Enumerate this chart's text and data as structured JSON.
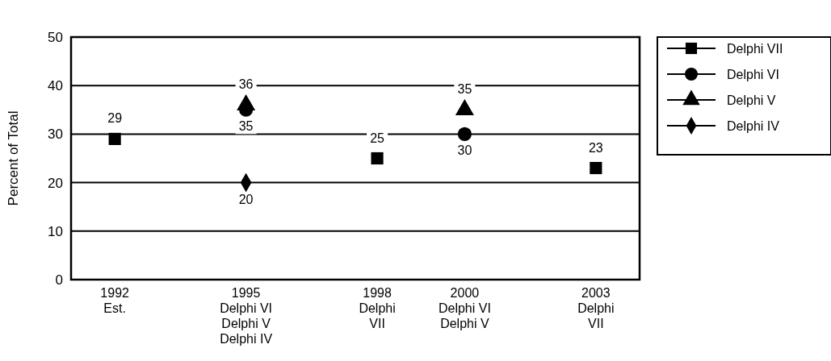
{
  "chart_data": {
    "type": "scatter",
    "ylabel": "Percent of Total",
    "xlim": [
      1991,
      2004
    ],
    "ylim": [
      0,
      50
    ],
    "yticks": [
      0,
      10,
      20,
      30,
      40,
      50
    ],
    "xticks": [
      {
        "value": 1992,
        "label": "1992\nEst."
      },
      {
        "value": 1995,
        "label": "1995\nDelphi VI\nDelphi V\nDelphi IV"
      },
      {
        "value": 1998,
        "label": "1998\nDelphi\nVII"
      },
      {
        "value": 2000,
        "label": "2000\nDelphi VI\nDelphi V"
      },
      {
        "value": 2003,
        "label": "2003\nDelphi\nVII"
      }
    ],
    "grid": "y",
    "legend": "right",
    "data_labels": true,
    "series": [
      {
        "name": "Delphi VII",
        "color": "#000000",
        "marker": "square",
        "x": [
          1992,
          1998,
          2003
        ],
        "values": [
          29,
          25,
          23
        ]
      },
      {
        "name": "Delphi VI",
        "color": "#000000",
        "marker": "circle",
        "x": [
          1995,
          2000
        ],
        "values": [
          35,
          30
        ]
      },
      {
        "name": "Delphi V",
        "color": "#000000",
        "marker": "triangle",
        "x": [
          1995,
          2000
        ],
        "values": [
          36,
          35
        ]
      },
      {
        "name": "Delphi IV",
        "color": "#000000",
        "marker": "diamond",
        "x": [
          1995
        ],
        "values": [
          20
        ]
      }
    ]
  }
}
